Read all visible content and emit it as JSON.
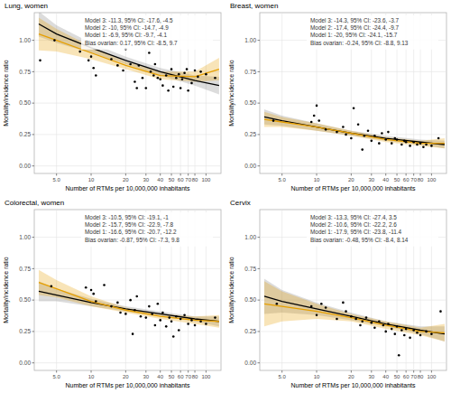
{
  "chart_data": [
    {
      "type": "scatter",
      "title": "Lung, women",
      "x_label": "Number of RTMs per 10,000,000 inhabitants",
      "y_label": "Mortality/incidence ratio",
      "log": "x",
      "grid": true,
      "xlim": [
        3.2,
        135
      ],
      "ylim": [
        -0.06,
        1.22
      ],
      "xticks": [
        {
          "value": 5,
          "label": "5.0"
        },
        10,
        20,
        30,
        40,
        50,
        60,
        70,
        80,
        100
      ],
      "yticks": [
        {
          "value": 0,
          "label": "0.00"
        },
        {
          "value": 0.25,
          "label": "0.25"
        },
        {
          "value": 0.5,
          "label": "0.50"
        },
        {
          "value": 0.75,
          "label": "0.75"
        },
        {
          "value": 1,
          "label": "1.00"
        }
      ],
      "annotations": [
        "Model 3: -11.3, 95% CI: -17.6, -4.5",
        "Model 2: -10, 95% CI: -14.7, -4.9",
        "Model 1: -6.9, 95% CI: -9.7, -4.1",
        "Bias ovarian: 0.17, 95% CI: -8.5, 9.7"
      ],
      "series": [
        {
          "type": "scatter",
          "color": "#000000",
          "marker": "circle",
          "x": [
            3.6,
            4.8,
            8,
            9.5,
            10,
            10.5,
            11,
            15,
            17,
            19,
            20,
            22,
            24,
            25,
            26,
            28,
            30,
            32,
            33,
            35,
            36,
            38,
            40,
            42,
            45,
            47,
            50,
            52,
            55,
            58,
            60,
            62,
            65,
            68,
            70,
            75,
            80,
            85,
            90,
            100,
            120
          ],
          "values": [
            0.84,
            1.0,
            0.91,
            0.84,
            0.87,
            0.78,
            0.72,
            0.85,
            0.8,
            0.76,
            0.93,
            0.81,
            0.67,
            0.62,
            0.8,
            0.7,
            0.62,
            0.9,
            0.75,
            0.72,
            0.81,
            0.7,
            0.69,
            0.64,
            0.72,
            0.6,
            0.77,
            0.63,
            0.7,
            0.73,
            0.62,
            0.69,
            0.74,
            0.77,
            0.6,
            0.66,
            0.76,
            0.71,
            0.75,
            0.73,
            0.7
          ]
        },
        {
          "type": "line",
          "color": "#000000",
          "line_style": "solid",
          "x": [
            3.5,
            5,
            10,
            20,
            40,
            80,
            130
          ],
          "values": [
            1.13,
            1.05,
            0.94,
            0.84,
            0.75,
            0.68,
            0.64
          ],
          "lower": [
            1.03,
            0.98,
            0.9,
            0.81,
            0.72,
            0.64,
            0.57
          ],
          "upper": [
            1.23,
            1.12,
            0.98,
            0.87,
            0.78,
            0.72,
            0.71
          ]
        },
        {
          "type": "line",
          "color": "#e69f00",
          "line_style": "solid",
          "x": [
            3.5,
            5,
            10,
            20,
            40,
            80,
            130
          ],
          "values": [
            1.05,
            1.0,
            0.9,
            0.8,
            0.72,
            0.71,
            0.77
          ],
          "lower": [
            0.92,
            0.91,
            0.85,
            0.77,
            0.69,
            0.67,
            0.68
          ],
          "upper": [
            1.18,
            1.09,
            0.95,
            0.83,
            0.75,
            0.75,
            0.86
          ]
        }
      ]
    },
    {
      "type": "scatter",
      "title": "Breast, women",
      "x_label": "Number of RTMs per 10,000,000 inhabitants",
      "y_label": "Mortality/incidence ratio",
      "log": "x",
      "grid": true,
      "xlim": [
        3.2,
        135
      ],
      "ylim": [
        -0.06,
        1.22
      ],
      "xticks": [
        {
          "value": 5,
          "label": "5.0"
        },
        10,
        20,
        30,
        40,
        50,
        60,
        70,
        80,
        100
      ],
      "yticks": [
        {
          "value": 0,
          "label": "0.00"
        },
        {
          "value": 0.25,
          "label": "0.25"
        },
        {
          "value": 0.5,
          "label": "0.50"
        },
        {
          "value": 0.75,
          "label": "0.75"
        },
        {
          "value": 1,
          "label": "1.00"
        }
      ],
      "annotations": [
        "Model 3: -14.3, 95% CI: -23.6, -3.7",
        "Model 2: -17.4, 95% CI: -24.4, -9.7",
        "Model 1: -20, 95% CI: -24.1, -15.7",
        "Bias ovarian: -0.24, 95% CI: -8.8, 9.13"
      ],
      "series": [
        {
          "type": "scatter",
          "color": "#000000",
          "marker": "circle",
          "x": [
            4.2,
            9,
            9.5,
            10,
            10.5,
            12,
            15,
            17,
            18,
            20,
            21,
            23,
            25,
            26,
            28,
            30,
            32,
            35,
            37,
            40,
            42,
            45,
            48,
            50,
            55,
            58,
            60,
            65,
            70,
            75,
            80,
            85,
            90,
            100,
            115
          ],
          "values": [
            0.36,
            0.35,
            0.4,
            0.48,
            0.36,
            0.29,
            0.27,
            0.31,
            0.25,
            0.22,
            0.46,
            0.33,
            0.13,
            0.24,
            0.28,
            0.2,
            0.24,
            0.18,
            0.26,
            0.21,
            0.27,
            0.18,
            0.22,
            0.21,
            0.17,
            0.2,
            0.19,
            0.16,
            0.19,
            0.17,
            0.18,
            0.15,
            0.17,
            0.16,
            0.22
          ]
        },
        {
          "type": "line",
          "color": "#000000",
          "line_style": "solid",
          "x": [
            3.5,
            5,
            10,
            20,
            40,
            80,
            130
          ],
          "values": [
            0.39,
            0.36,
            0.31,
            0.26,
            0.22,
            0.19,
            0.17
          ],
          "lower": [
            0.33,
            0.32,
            0.28,
            0.24,
            0.2,
            0.17,
            0.14
          ],
          "upper": [
            0.45,
            0.4,
            0.34,
            0.28,
            0.24,
            0.21,
            0.2
          ]
        },
        {
          "type": "line",
          "color": "#e69f00",
          "line_style": "solid",
          "x": [
            3.5,
            5,
            10,
            20,
            40,
            80,
            130
          ],
          "values": [
            0.37,
            0.35,
            0.31,
            0.26,
            0.21,
            0.18,
            0.18
          ],
          "lower": [
            0.31,
            0.31,
            0.28,
            0.24,
            0.19,
            0.16,
            0.14
          ],
          "upper": [
            0.43,
            0.39,
            0.34,
            0.28,
            0.23,
            0.2,
            0.22
          ]
        }
      ]
    },
    {
      "type": "scatter",
      "title": "Colorectal, women",
      "x_label": "Number of RTMs per 10,000,000 inhabitants",
      "y_label": "Mortality/incidence ratio",
      "log": "x",
      "grid": true,
      "xlim": [
        3.2,
        135
      ],
      "ylim": [
        -0.06,
        1.22
      ],
      "xticks": [
        {
          "value": 5,
          "label": "5.0"
        },
        10,
        20,
        30,
        40,
        50,
        60,
        70,
        80,
        100
      ],
      "yticks": [
        {
          "value": 0,
          "label": "0.00"
        },
        {
          "value": 0.25,
          "label": "0.25"
        },
        {
          "value": 0.5,
          "label": "0.50"
        },
        {
          "value": 0.75,
          "label": "0.75"
        },
        {
          "value": 1,
          "label": "1.00"
        }
      ],
      "annotations": [
        "Model 3: -10.5, 95% CI: -19.1, -1",
        "Model 2: -15.7, 95% CI: -22.9, -7.8",
        "Model 1: -16.6, 95% CI: -20.7, -12.2",
        "Bias ovarian: -0.87, 95% CI: -7.3, 9.8"
      ],
      "series": [
        {
          "type": "scatter",
          "color": "#000000",
          "marker": "circle",
          "x": [
            4.5,
            9,
            10,
            10.5,
            11,
            13,
            15,
            17,
            18,
            20,
            22,
            23,
            24,
            25,
            27,
            30,
            32,
            34,
            36,
            38,
            40,
            42,
            45,
            48,
            50,
            52,
            55,
            58,
            60,
            65,
            70,
            75,
            80,
            90,
            100,
            120
          ],
          "values": [
            0.61,
            0.6,
            0.58,
            0.55,
            0.49,
            0.62,
            0.45,
            0.48,
            0.4,
            0.39,
            0.5,
            0.23,
            0.42,
            0.53,
            0.37,
            0.36,
            0.45,
            0.39,
            0.3,
            0.47,
            0.34,
            0.4,
            0.29,
            0.36,
            0.33,
            0.21,
            0.37,
            0.26,
            0.35,
            0.38,
            0.31,
            0.34,
            0.3,
            0.33,
            0.31,
            0.36
          ]
        },
        {
          "type": "line",
          "color": "#000000",
          "line_style": "solid",
          "x": [
            3.5,
            5,
            10,
            20,
            40,
            80,
            130
          ],
          "values": [
            0.57,
            0.54,
            0.48,
            0.43,
            0.39,
            0.35,
            0.33
          ],
          "lower": [
            0.49,
            0.49,
            0.45,
            0.41,
            0.37,
            0.33,
            0.29
          ],
          "upper": [
            0.65,
            0.59,
            0.51,
            0.45,
            0.41,
            0.37,
            0.37
          ]
        },
        {
          "type": "line",
          "color": "#e69f00",
          "line_style": "solid",
          "x": [
            3.5,
            5,
            10,
            20,
            40,
            80,
            130
          ],
          "values": [
            0.64,
            0.59,
            0.49,
            0.42,
            0.37,
            0.34,
            0.33
          ],
          "lower": [
            0.54,
            0.52,
            0.45,
            0.4,
            0.35,
            0.31,
            0.28
          ],
          "upper": [
            0.74,
            0.66,
            0.53,
            0.44,
            0.39,
            0.37,
            0.38
          ]
        }
      ]
    },
    {
      "type": "scatter",
      "title": "Cervix",
      "x_label": "Number of RTMs per 10,000,000 inhabitants",
      "y_label": "Mortality/incidence ratio",
      "log": "x",
      "grid": true,
      "xlim": [
        3.2,
        135
      ],
      "ylim": [
        -0.06,
        1.22
      ],
      "xticks": [
        {
          "value": 5,
          "label": "5.0"
        },
        10,
        20,
        30,
        40,
        50,
        60,
        70,
        80,
        100
      ],
      "yticks": [
        {
          "value": 0,
          "label": "0.00"
        },
        {
          "value": 0.25,
          "label": "0.25"
        },
        {
          "value": 0.5,
          "label": "0.50"
        },
        {
          "value": 0.75,
          "label": "0.75"
        },
        {
          "value": 1,
          "label": "1.00"
        }
      ],
      "annotations": [
        "Model 3: -13.3, 95% CI: -27.4, 3.5",
        "Model 2: -10.6, 95% CI: -22.2, 2.6",
        "Model 1: -17.9, 95% CI: -23.8, -11.4",
        "Bias ovarian: -0.48, 95% CI: -8.4, 8.14"
      ],
      "series": [
        {
          "type": "scatter",
          "color": "#000000",
          "marker": "circle",
          "x": [
            4.5,
            9,
            10,
            11,
            12,
            15,
            17,
            18,
            20,
            22,
            24,
            25,
            27,
            30,
            32,
            35,
            38,
            40,
            42,
            45,
            48,
            50,
            52,
            55,
            58,
            60,
            65,
            70,
            75,
            80,
            90,
            100,
            120
          ],
          "values": [
            0.47,
            0.45,
            0.38,
            0.47,
            0.44,
            0.35,
            0.48,
            0.41,
            0.37,
            0.35,
            0.3,
            0.33,
            0.36,
            0.32,
            0.28,
            0.33,
            0.3,
            0.25,
            0.31,
            0.27,
            0.23,
            0.29,
            0.06,
            0.26,
            0.22,
            0.27,
            0.2,
            0.26,
            0.24,
            0.22,
            0.25,
            0.23,
            0.41
          ]
        },
        {
          "type": "line",
          "color": "#000000",
          "line_style": "solid",
          "x": [
            3.5,
            5,
            10,
            20,
            40,
            80,
            130
          ],
          "values": [
            0.53,
            0.49,
            0.43,
            0.37,
            0.31,
            0.26,
            0.23
          ],
          "lower": [
            0.39,
            0.4,
            0.38,
            0.34,
            0.29,
            0.23,
            0.17
          ],
          "upper": [
            0.67,
            0.58,
            0.48,
            0.4,
            0.33,
            0.29,
            0.29
          ]
        },
        {
          "type": "line",
          "color": "#e69f00",
          "line_style": "solid",
          "x": [
            3.5,
            5,
            10,
            20,
            40,
            80,
            130
          ],
          "values": [
            0.47,
            0.45,
            0.41,
            0.36,
            0.3,
            0.25,
            0.24
          ],
          "lower": [
            0.29,
            0.33,
            0.35,
            0.33,
            0.27,
            0.22,
            0.17
          ],
          "upper": [
            0.65,
            0.57,
            0.47,
            0.39,
            0.33,
            0.28,
            0.31
          ]
        }
      ]
    }
  ]
}
